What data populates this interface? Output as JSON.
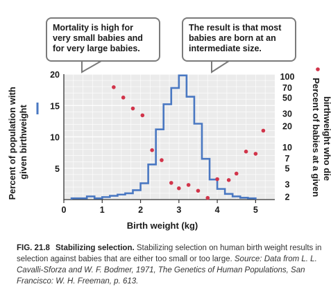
{
  "callouts": {
    "left": "Mortality is high for very small babies and for very large babies.",
    "right": "The result is that most babies are born at an intermediate size."
  },
  "chart_data": {
    "type": "bar",
    "xlabel": "Birth weight (kg)",
    "ylabel": "Percent of population with given birthweight",
    "y2label": "Percent of babies at a given birthweight who die",
    "xlim": [
      0,
      5.5
    ],
    "ylim": [
      0,
      20
    ],
    "x_ticks": [
      0,
      1,
      2,
      3,
      4,
      5
    ],
    "y_ticks": [
      5,
      10,
      15,
      20
    ],
    "y2_ticks": [
      100,
      70,
      50,
      30,
      20,
      10,
      7,
      5,
      3,
      2
    ],
    "y2_scale": "log",
    "grid": true,
    "series": [
      {
        "kind": "step-histogram",
        "color": "#4a78c2",
        "bins": [
          {
            "x0": 0.2,
            "x1": 0.6,
            "value": 0.2
          },
          {
            "x0": 0.6,
            "x1": 0.8,
            "value": 0.5
          },
          {
            "x0": 0.8,
            "x1": 1.0,
            "value": 0.2
          },
          {
            "x0": 1.0,
            "x1": 1.2,
            "value": 0.4
          },
          {
            "x0": 1.2,
            "x1": 1.4,
            "value": 0.6
          },
          {
            "x0": 1.4,
            "x1": 1.6,
            "value": 0.8
          },
          {
            "x0": 1.6,
            "x1": 1.8,
            "value": 1.0
          },
          {
            "x0": 1.8,
            "x1": 2.0,
            "value": 1.5
          },
          {
            "x0": 2.0,
            "x1": 2.2,
            "value": 2.6
          },
          {
            "x0": 2.2,
            "x1": 2.4,
            "value": 5.6
          },
          {
            "x0": 2.4,
            "x1": 2.6,
            "value": 11.2
          },
          {
            "x0": 2.6,
            "x1": 2.8,
            "value": 15.2
          },
          {
            "x0": 2.8,
            "x1": 3.0,
            "value": 17.8
          },
          {
            "x0": 3.0,
            "x1": 3.2,
            "value": 19.8
          },
          {
            "x0": 3.2,
            "x1": 3.4,
            "value": 16.4
          },
          {
            "x0": 3.4,
            "x1": 3.6,
            "value": 12.1
          },
          {
            "x0": 3.6,
            "x1": 3.8,
            "value": 6.5
          },
          {
            "x0": 3.8,
            "x1": 4.0,
            "value": 3.2
          },
          {
            "x0": 4.0,
            "x1": 4.2,
            "value": 1.7
          },
          {
            "x0": 4.2,
            "x1": 4.4,
            "value": 0.9
          },
          {
            "x0": 4.4,
            "x1": 4.6,
            "value": 0.5
          },
          {
            "x0": 4.6,
            "x1": 4.8,
            "value": 0.3
          },
          {
            "x0": 4.8,
            "x1": 5.0,
            "value": 0.2
          }
        ]
      },
      {
        "kind": "scatter",
        "axis": "right",
        "color": "#d1344a",
        "points": [
          {
            "x": 1.3,
            "y": 70
          },
          {
            "x": 1.55,
            "y": 50
          },
          {
            "x": 1.8,
            "y": 35
          },
          {
            "x": 2.05,
            "y": 28
          },
          {
            "x": 2.3,
            "y": 9
          },
          {
            "x": 2.55,
            "y": 6.5
          },
          {
            "x": 2.8,
            "y": 3.1
          },
          {
            "x": 3.0,
            "y": 2.6
          },
          {
            "x": 3.25,
            "y": 2.9
          },
          {
            "x": 3.5,
            "y": 2.4
          },
          {
            "x": 3.75,
            "y": 1.9
          },
          {
            "x": 4.0,
            "y": 3.5
          },
          {
            "x": 4.3,
            "y": 3.4
          },
          {
            "x": 4.5,
            "y": 4.2
          },
          {
            "x": 4.75,
            "y": 8.6
          },
          {
            "x": 5.0,
            "y": 8.0
          },
          {
            "x": 5.2,
            "y": 17
          }
        ]
      }
    ]
  },
  "caption": {
    "figno": "FIG. 21.8",
    "title": "Stabilizing selection.",
    "text": " Stabilizing selection on human birth weight results in selection against babies that are either too small or too large. ",
    "source": "Source: Data from L. L. Cavalli-Sforza and W. F. Bodmer, 1971, The Genetics of Human Populations, San Francisco: W. H. Freeman, p. 613."
  }
}
